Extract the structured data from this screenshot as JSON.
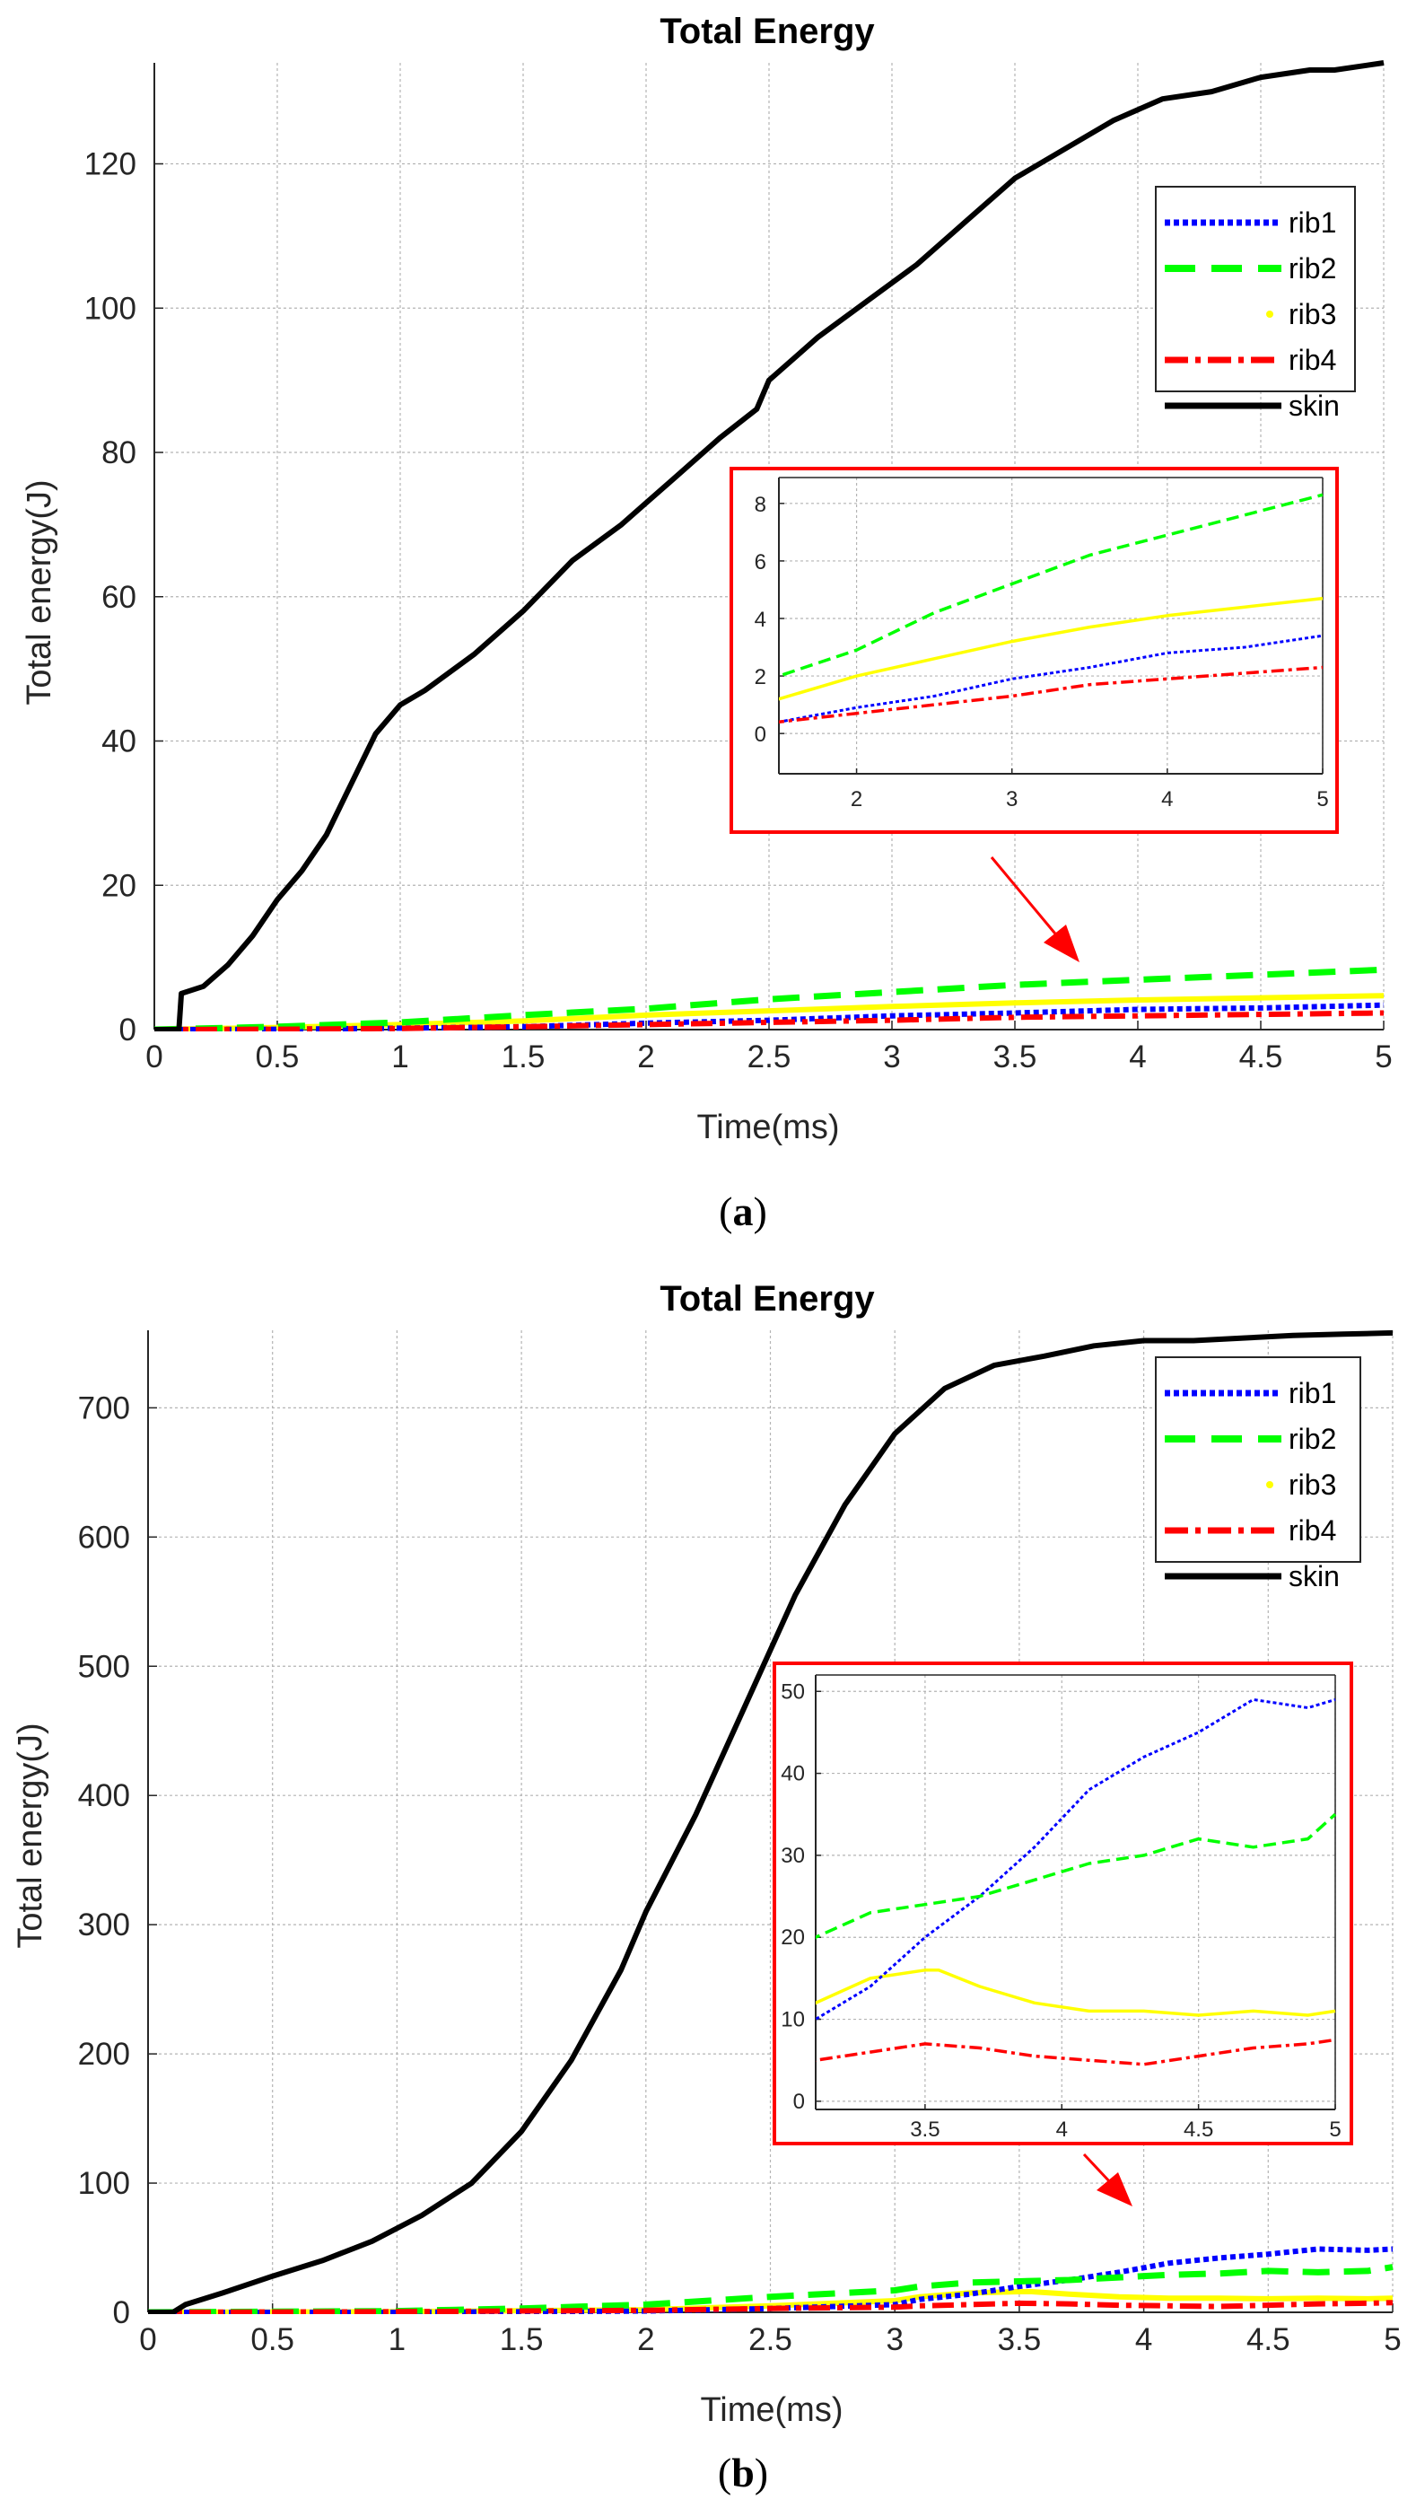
{
  "colors": {
    "rib1": "#0000ff",
    "rib2": "#00ff00",
    "rib3": "#ffff00",
    "rib4": "#ff0000",
    "skin": "#000000",
    "inset_frame": "#ff0000",
    "arrow": "#ff0000"
  },
  "chart_data": [
    {
      "type": "line",
      "caption": "a",
      "title": "Total Energy",
      "xlabel": "Time(ms)",
      "ylabel": "Total energy(J)",
      "xlim": [
        0,
        5
      ],
      "ylim": [
        0,
        134
      ],
      "xticks": [
        "0",
        "0.5",
        "1",
        "1.5",
        "2",
        "2.5",
        "3",
        "3.5",
        "4",
        "4.5",
        "5"
      ],
      "yticks": [
        "0",
        "20",
        "40",
        "60",
        "80",
        "100",
        "120"
      ],
      "grid": true,
      "legend_position": "top-right",
      "series": [
        {
          "name": "rib1",
          "x": [
            0,
            0.5,
            1,
            1.5,
            2,
            2.5,
            3,
            3.5,
            4,
            4.5,
            5
          ],
          "y": [
            0,
            0.05,
            0.2,
            0.4,
            0.9,
            1.3,
            1.9,
            2.3,
            2.8,
            3.0,
            3.4
          ]
        },
        {
          "name": "rib2",
          "x": [
            0,
            0.5,
            1,
            1.5,
            2,
            2.5,
            3,
            3.5,
            4,
            4.5,
            5
          ],
          "y": [
            0,
            0.4,
            1.0,
            2.0,
            2.9,
            4.2,
            5.2,
            6.2,
            6.9,
            7.6,
            8.3
          ]
        },
        {
          "name": "rib3",
          "x": [
            0,
            0.5,
            1,
            1.5,
            2,
            2.5,
            3,
            3.5,
            4,
            4.5,
            5
          ],
          "y": [
            0,
            0.3,
            0.7,
            1.2,
            2.0,
            2.6,
            3.2,
            3.7,
            4.1,
            4.4,
            4.7
          ]
        },
        {
          "name": "rib4",
          "x": [
            0,
            0.5,
            1,
            1.5,
            2,
            2.5,
            3,
            3.5,
            4,
            4.5,
            5
          ],
          "y": [
            0,
            0.05,
            0.15,
            0.4,
            0.7,
            1.0,
            1.3,
            1.7,
            1.9,
            2.1,
            2.3
          ]
        },
        {
          "name": "skin",
          "x": [
            0,
            0.1,
            0.11,
            0.2,
            0.3,
            0.4,
            0.5,
            0.6,
            0.7,
            0.8,
            0.9,
            1.0,
            1.1,
            1.3,
            1.5,
            1.7,
            1.9,
            2.0,
            2.1,
            2.3,
            2.45,
            2.5,
            2.7,
            2.9,
            3.1,
            3.3,
            3.5,
            3.7,
            3.9,
            4.1,
            4.3,
            4.5,
            4.7,
            4.8,
            5.0
          ],
          "y": [
            0,
            0,
            5,
            6,
            9,
            13,
            18,
            22,
            27,
            34,
            41,
            45,
            47,
            52,
            58,
            65,
            70,
            73,
            76,
            82,
            86,
            90,
            96,
            101,
            106,
            112,
            118,
            122,
            126,
            129,
            130,
            132,
            133,
            133,
            134
          ]
        }
      ],
      "inset": {
        "xlim": [
          1.5,
          5
        ],
        "ylim": [
          -1.4,
          8.9
        ],
        "xticks": [
          "2",
          "3",
          "4",
          "5"
        ],
        "yticks": [
          "0",
          "2",
          "4",
          "6",
          "8"
        ]
      }
    },
    {
      "type": "line",
      "caption": "b",
      "title": "Total Energy",
      "xlabel": "Time(ms)",
      "ylabel": "Total energy(J)",
      "xlim": [
        0,
        5
      ],
      "ylim": [
        0,
        760
      ],
      "xticks": [
        "0",
        "0.5",
        "1",
        "1.5",
        "2",
        "2.5",
        "3",
        "3.5",
        "4",
        "4.5",
        "5"
      ],
      "yticks": [
        "0",
        "100",
        "200",
        "300",
        "400",
        "500",
        "600",
        "700"
      ],
      "grid": true,
      "legend_position": "top-right",
      "series": [
        {
          "name": "rib1",
          "x": [
            0,
            1,
            2,
            2.5,
            3,
            3.1,
            3.3,
            3.5,
            3.7,
            3.9,
            4.1,
            4.3,
            4.5,
            4.7,
            4.9,
            5.0
          ],
          "y": [
            0,
            0,
            1,
            3,
            6,
            10,
            14,
            20,
            25,
            31,
            38,
            42,
            45,
            49,
            48,
            49
          ]
        },
        {
          "name": "rib2",
          "x": [
            0,
            1,
            1.5,
            2,
            2.5,
            3,
            3.1,
            3.3,
            3.5,
            3.7,
            3.9,
            4.1,
            4.3,
            4.5,
            4.7,
            4.9,
            5.0
          ],
          "y": [
            0,
            1,
            3,
            6,
            12,
            17,
            20,
            23,
            24,
            25,
            27,
            29,
            30,
            32,
            31,
            32,
            35
          ]
        },
        {
          "name": "rib3",
          "x": [
            0,
            1,
            2,
            2.5,
            3,
            3.1,
            3.3,
            3.5,
            3.55,
            3.7,
            3.9,
            4.1,
            4.3,
            4.5,
            4.7,
            4.9,
            5.0
          ],
          "y": [
            0,
            0.5,
            2,
            5,
            9,
            12,
            15,
            16,
            16,
            14,
            12,
            11,
            11,
            10.5,
            11,
            10.5,
            11
          ]
        },
        {
          "name": "rib4",
          "x": [
            0,
            1,
            2,
            2.5,
            3,
            3.1,
            3.3,
            3.5,
            3.7,
            3.9,
            4.1,
            4.3,
            4.5,
            4.7,
            4.9,
            5.0
          ],
          "y": [
            0,
            0.5,
            1.5,
            3,
            4,
            5,
            6,
            7,
            6.5,
            5.5,
            5,
            4.5,
            5.5,
            6.5,
            7,
            7.5
          ]
        },
        {
          "name": "skin",
          "x": [
            0,
            0.1,
            0.15,
            0.3,
            0.5,
            0.7,
            0.9,
            1.1,
            1.3,
            1.5,
            1.7,
            1.9,
            2.0,
            2.2,
            2.4,
            2.6,
            2.8,
            3.0,
            3.2,
            3.4,
            3.6,
            3.8,
            4.0,
            4.2,
            4.4,
            4.6,
            4.8,
            5.0
          ],
          "y": [
            0,
            0,
            6,
            15,
            28,
            40,
            55,
            75,
            100,
            140,
            195,
            265,
            310,
            385,
            470,
            555,
            625,
            680,
            715,
            733,
            740,
            748,
            752,
            752,
            754,
            756,
            757,
            758
          ]
        }
      ],
      "inset": {
        "xlim": [
          3.1,
          5
        ],
        "ylim": [
          -1,
          52
        ],
        "xticks": [
          "3.5",
          "4",
          "4.5",
          "5"
        ],
        "yticks": [
          "0",
          "10",
          "20",
          "30",
          "40",
          "50"
        ]
      }
    }
  ]
}
